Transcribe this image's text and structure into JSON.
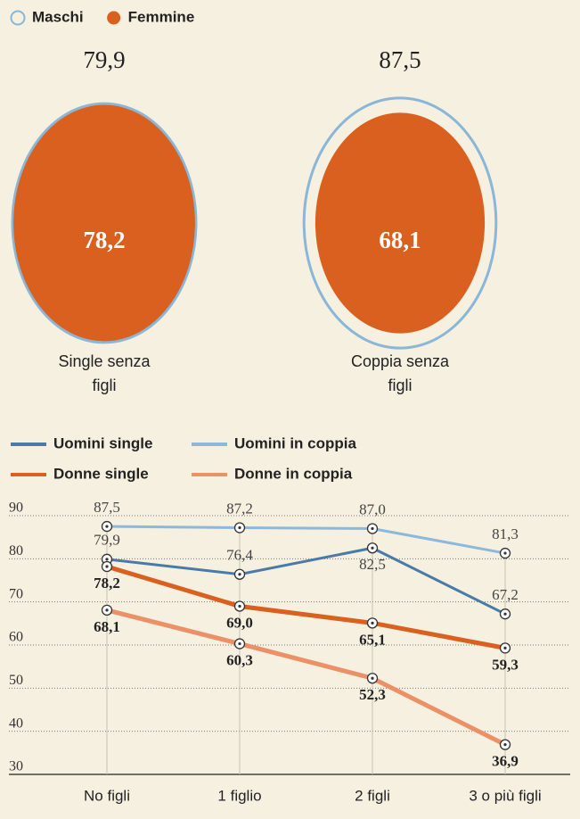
{
  "chart_data": [
    {
      "type": "bubble",
      "legend": "top-left",
      "categories": [
        "Single senza figli",
        "Coppia senza figli"
      ],
      "series": [
        {
          "name": "Maschi",
          "color": "#8ab6d8",
          "style": "outline",
          "values": [
            79.9,
            87.5
          ],
          "value_labels": [
            "79,9",
            "87,5"
          ]
        },
        {
          "name": "Femmine",
          "color": "#d9601f",
          "style": "filled",
          "values": [
            78.2,
            68.1
          ],
          "value_labels": [
            "78,2",
            "68,1"
          ]
        }
      ]
    },
    {
      "type": "line",
      "legend": "top-left",
      "grid": true,
      "categories": [
        "No figli",
        "1 figlio",
        "2 figli",
        "3 o più figli"
      ],
      "ylim": [
        30,
        90
      ],
      "yticks": [
        30,
        40,
        50,
        60,
        70,
        80,
        90
      ],
      "series": [
        {
          "name": "Uomini single",
          "color": "#4a7aa8",
          "values": [
            79.9,
            76.4,
            82.5,
            67.2
          ],
          "value_labels": [
            "79,9",
            "76,4",
            "82,5",
            "67,2"
          ]
        },
        {
          "name": "Uomini in coppia",
          "color": "#8cb8db",
          "values": [
            87.5,
            87.2,
            87.0,
            81.3
          ],
          "value_labels": [
            "87,5",
            "87,2",
            "87,0",
            "81,3"
          ]
        },
        {
          "name": "Donne single",
          "color": "#d9601f",
          "values": [
            78.2,
            69.0,
            65.1,
            59.3
          ],
          "value_labels": [
            "78,2",
            "69,0",
            "65,1",
            "59,3"
          ]
        },
        {
          "name": "Donne in coppia",
          "color": "#ec9066",
          "values": [
            68.1,
            60.3,
            52.3,
            36.9
          ],
          "value_labels": [
            "68,1",
            "60,3",
            "52,3",
            "36,9"
          ]
        }
      ]
    }
  ]
}
